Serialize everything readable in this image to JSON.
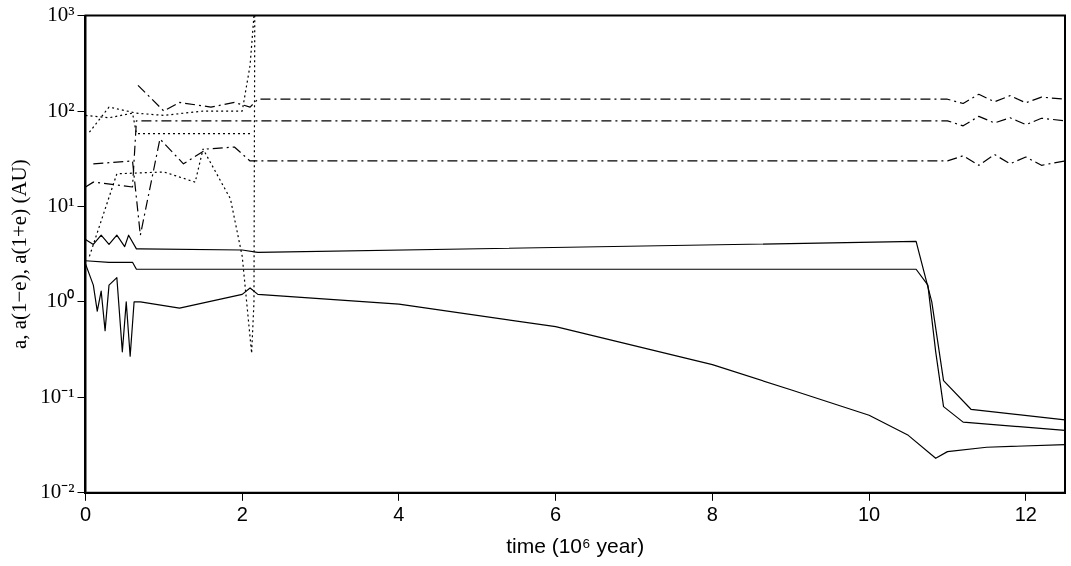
{
  "chart_data": {
    "type": "line",
    "xlabel": "time (10⁶ year)",
    "ylabel": "a, a(1−e), a(1+e) (AU)",
    "log": "y",
    "grid": false,
    "legend": false,
    "marker": "none",
    "xlim": [
      0,
      12.5
    ],
    "xticks": [
      0,
      2,
      4,
      6,
      8,
      10,
      12
    ],
    "ylim": [
      0.01,
      1000
    ],
    "yticks": [
      {
        "value": 0.01,
        "label": "10⁻²"
      },
      {
        "value": 0.1,
        "label": "10⁻¹"
      },
      {
        "value": 1,
        "label": "10⁰"
      },
      {
        "value": 10,
        "label": "10¹"
      },
      {
        "value": 100,
        "label": "10²"
      },
      {
        "value": 1000,
        "label": "10³"
      }
    ],
    "series": [
      {
        "color": "#000000",
        "line_style": "solid",
        "x": [
          0,
          0.3,
          0.6,
          0.65,
          2.2,
          10.6,
          10.75,
          10.85,
          10.95,
          11.2,
          12.5
        ],
        "values": [
          2.7,
          2.6,
          2.6,
          2.2,
          2.2,
          2.2,
          1.5,
          0.3,
          0.08,
          0.055,
          0.045
        ]
      },
      {
        "color": "#000000",
        "line_style": "solid",
        "x": [
          0,
          0.1,
          0.2,
          0.3,
          0.4,
          0.5,
          0.55,
          0.65,
          0.7,
          2.0,
          2.2,
          10.6,
          10.8,
          10.95,
          11.3,
          12.5
        ],
        "values": [
          4.5,
          4,
          5,
          4,
          5,
          3.8,
          5,
          3.6,
          3.6,
          3.5,
          3.3,
          4.3,
          1.0,
          0.15,
          0.075,
          0.058
        ]
      },
      {
        "color": "#000000",
        "line_style": "solid",
        "x": [
          0,
          0.1,
          0.15,
          0.2,
          0.25,
          0.3,
          0.4,
          0.47,
          0.52,
          0.57,
          0.62,
          0.7,
          1.2,
          2.0,
          2.1,
          2.2,
          4,
          6,
          8,
          9,
          10,
          10.5,
          10.85,
          11.0,
          11.5,
          12.5
        ],
        "values": [
          2.5,
          1.5,
          0.8,
          1.3,
          0.5,
          1.5,
          1.8,
          0.3,
          1.0,
          0.27,
          1.0,
          1.0,
          0.86,
          1.2,
          1.4,
          1.2,
          0.95,
          0.55,
          0.22,
          0.12,
          0.065,
          0.04,
          0.023,
          0.027,
          0.03,
          0.032
        ]
      },
      {
        "color": "#000000",
        "line_style": "dashed",
        "x": [
          0,
          0.1,
          0.6,
          0.65,
          2.1,
          2.2,
          11,
          11.2,
          11.4,
          11.6,
          11.8,
          12,
          12.2,
          12.5
        ],
        "values": [
          16,
          18,
          16,
          79,
          79,
          79,
          79,
          70,
          88,
          75,
          85,
          72,
          84,
          79
        ]
      },
      {
        "color": "#000000",
        "line_style": "dashed",
        "x": [
          0.67,
          1.0,
          1.2,
          1.6,
          1.9,
          2.1,
          2.2,
          11,
          11.2,
          11.4,
          11.6,
          11.8,
          12,
          12.2,
          12.5
        ],
        "values": [
          186,
          100,
          123,
          110,
          123,
          110,
          133,
          133,
          120,
          150,
          125,
          145,
          122,
          140,
          133
        ]
      },
      {
        "color": "#000000",
        "line_style": "dashed",
        "x": [
          0.1,
          0.6,
          0.7,
          0.95,
          1.25,
          1.55,
          1.9,
          2.1,
          2.2,
          11,
          11.2,
          11.4,
          11.6,
          11.8,
          12,
          12.2,
          12.5
        ],
        "values": [
          28,
          30,
          5,
          51,
          28,
          40,
          42,
          30,
          30,
          30,
          34,
          27,
          35,
          28,
          33,
          27,
          30
        ]
      },
      {
        "color": "#000000",
        "line_style": "dotted",
        "x": [
          0,
          0.3,
          0.6,
          0.65,
          2.1
        ],
        "values": [
          90,
          85,
          95,
          58,
          58
        ]
      },
      {
        "color": "#000000",
        "line_style": "dotted",
        "x": [
          0.05,
          0.3,
          0.65,
          1.0,
          1.5,
          2.0,
          2.1,
          2.15
        ],
        "values": [
          60,
          110,
          95,
          90,
          100,
          100,
          300,
          1000
        ]
      },
      {
        "color": "#000000",
        "line_style": "dotted",
        "x": [
          0.05,
          0.4,
          1.0,
          1.4,
          1.5,
          1.85,
          2.0,
          2.12,
          2.15,
          2.16
        ],
        "values": [
          3,
          22,
          23,
          18,
          40,
          12,
          3,
          0.29,
          1,
          1000
        ]
      }
    ]
  }
}
